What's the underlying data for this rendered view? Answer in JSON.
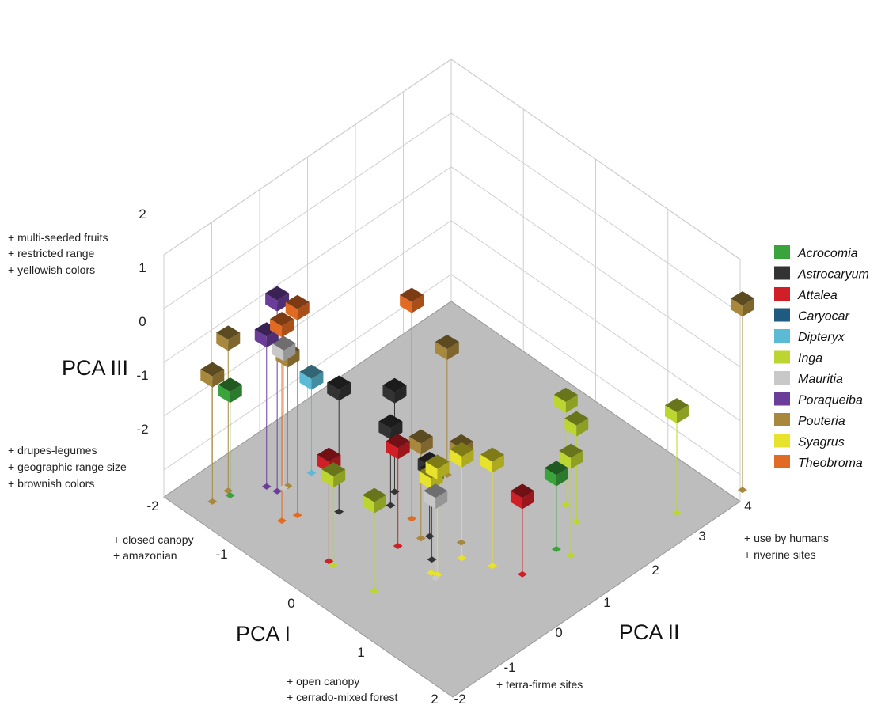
{
  "chart_data": {
    "type": "scatter",
    "subtype": "3d-scatter",
    "axes": {
      "x": {
        "label": "PCA I",
        "range": [
          -2,
          2
        ],
        "ticks": [
          "-2",
          "-1",
          "0",
          "1",
          "2"
        ],
        "low_note": [
          "+ closed canopy",
          "+ amazonian"
        ],
        "high_note": [
          "+ open canopy",
          "+ cerrado-mixed forest"
        ]
      },
      "y": {
        "label": "PCA II",
        "range": [
          -2,
          4
        ],
        "ticks": [
          "-2",
          "-1",
          "0",
          "1",
          "2",
          "3",
          "4"
        ],
        "low_note": [
          "+ terra-firme sites"
        ],
        "high_note": [
          "+ use by humans",
          "+ riverine sites"
        ]
      },
      "z": {
        "label": "PCA III",
        "range": [
          -2.5,
          2
        ],
        "ticks": [
          "2",
          "1",
          "0",
          "-1",
          "-2"
        ],
        "high_note": [
          "+ multi-seeded fruits",
          "+ restricted range",
          "+ yellowish colors"
        ],
        "low_note": [
          "+ drupes-legumes",
          "+ geographic range size",
          "+ brownish colors"
        ]
      }
    },
    "grid": true,
    "legend_position": "right",
    "series": [
      {
        "name": "Acrocomia",
        "color": "#3aa33c",
        "points": [
          [
            -1.56,
            -1.28,
            -0.44
          ],
          [
            1.22,
            1.34,
            -0.99
          ]
        ]
      },
      {
        "name": "Astrocaryum",
        "color": "#333333",
        "points": [
          [
            -0.65,
            -0.38,
            -0.1
          ],
          [
            -0.36,
            0.26,
            -0.94
          ],
          [
            0.22,
            0.2,
            -1.06
          ],
          [
            -0.47,
            0.51,
            -0.52
          ],
          [
            0.47,
            -0.13,
            -0.79
          ]
        ]
      },
      {
        "name": "Attalea",
        "color": "#d01f26",
        "points": [
          [
            -0.22,
            -1.24,
            -0.52
          ],
          [
            0.1,
            -0.28,
            -0.55
          ],
          [
            1.24,
            0.6,
            -0.95
          ]
        ]
      },
      {
        "name": "Caryocar",
        "color": "#1f5a80",
        "points": []
      },
      {
        "name": "Dipteryx",
        "color": "#5bbad5",
        "points": [
          [
            -1.23,
            -0.08,
            -0.62
          ]
        ]
      },
      {
        "name": "Inga",
        "color": "#bdd530",
        "points": [
          [
            -0.15,
            -1.25,
            -0.72
          ],
          [
            0.39,
            -1.21,
            -0.72
          ],
          [
            1.38,
            1.4,
            -0.56
          ],
          [
            1.08,
            1.97,
            -0.58
          ],
          [
            0.84,
            2.11,
            -0.45
          ],
          [
            1.68,
            3.16,
            -0.5
          ]
        ]
      },
      {
        "name": "Mauritia",
        "color": "#c8c8c8",
        "points": [
          [
            -1.27,
            -0.6,
            0.19
          ],
          [
            0.68,
            -0.37,
            -0.88
          ]
        ]
      },
      {
        "name": "Poraqueiba",
        "color": "#6a3d99",
        "points": [
          [
            -1.4,
            -0.76,
            0.42
          ],
          [
            -1.28,
            -0.72,
            1.18
          ]
        ]
      },
      {
        "name": "Pouteria",
        "color": "#a8883c",
        "points": [
          [
            -1.62,
            -1.56,
            -0.04
          ],
          [
            -1.26,
            -0.53,
            0.04
          ],
          [
            -1.62,
            -1.23,
            0.44
          ],
          [
            -0.28,
            1.32,
            -0.03
          ],
          [
            0.18,
            0.08,
            -0.61
          ],
          [
            0.5,
            0.44,
            -0.62
          ],
          [
            1.9,
            4.2,
            1.06
          ]
        ]
      },
      {
        "name": "Syagrus",
        "color": "#e7e22c",
        "points": [
          [
            0.6,
            -0.34,
            -0.61
          ],
          [
            0.66,
            0.21,
            -0.48
          ],
          [
            0.66,
            -0.3,
            -0.4
          ],
          [
            0.95,
            0.41,
            -0.43
          ]
        ]
      },
      {
        "name": "Theobroma",
        "color": "#e16b22",
        "points": [
          [
            -0.95,
            -1.12,
            1.25
          ],
          [
            -0.9,
            -0.87,
            1.46
          ],
          [
            -0.08,
            0.28,
            1.66
          ]
        ]
      }
    ]
  }
}
